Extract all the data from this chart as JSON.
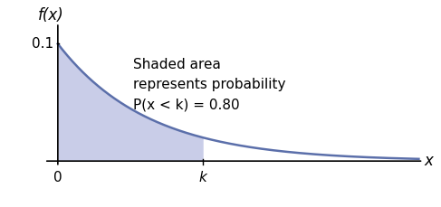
{
  "lambda": 0.1,
  "x_max": 40,
  "k_percentile": 0.8,
  "ylabel": "f(x)",
  "xlabel": "x",
  "x0_label": "0",
  "k_label": "k",
  "y01_label": "0.1",
  "annotation": "Shaded area\nrepresents probability\nP(x < k) = 0.80",
  "curve_color": "#5b6faa",
  "shade_color": "#8890cc",
  "shade_alpha": 0.45,
  "bg_color": "#ffffff",
  "axis_fontsize": 12,
  "tick_fontsize": 11,
  "annotation_fontsize": 11,
  "figsize": [
    4.87,
    2.29
  ],
  "dpi": 100
}
